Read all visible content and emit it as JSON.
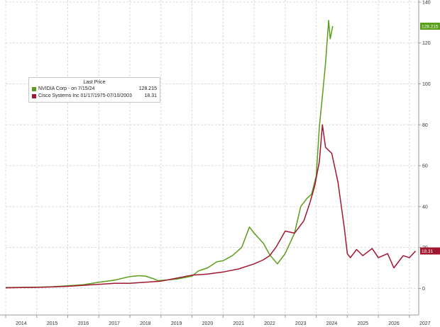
{
  "chart_data": {
    "type": "line",
    "grid": true,
    "x_ticks": [
      "2014",
      "2015",
      "2016",
      "2017",
      "2018",
      "2019",
      "2020",
      "2021",
      "2022",
      "2023",
      "2024",
      "2025",
      "2026",
      "2027"
    ],
    "y_ticks": [
      "0",
      "20",
      "40",
      "60",
      "80",
      "100",
      "120",
      "140"
    ],
    "xlim": [
      2014,
      2027.3
    ],
    "ylim": [
      -13,
      141
    ],
    "legend": {
      "title": "Last Price",
      "placement": "top-left",
      "entries": [
        {
          "name": "NVIDIA Corp -  on 7/15/24",
          "value": "128.215",
          "color": "#5a9e1a"
        },
        {
          "name": "Cisco Systems Inc 01/17/1975-07/10/2003",
          "value": "18.31",
          "color": "#a3162f"
        }
      ]
    },
    "series": [
      {
        "name": "NVIDIA Corp -  on 7/15/24",
        "color": "#5a9e1a",
        "last_value_label": "128.215",
        "x": [
          2014.0,
          2014.5,
          2015.0,
          2015.5,
          2016.0,
          2016.5,
          2017.0,
          2017.5,
          2018.0,
          2018.3,
          2018.5,
          2018.75,
          2018.9,
          2019.0,
          2019.5,
          2020.0,
          2020.2,
          2020.5,
          2020.8,
          2021.0,
          2021.3,
          2021.6,
          2021.85,
          2022.0,
          2022.3,
          2022.5,
          2022.75,
          2022.85,
          2023.0,
          2023.3,
          2023.5,
          2023.7,
          2023.85,
          2024.0,
          2024.1,
          2024.2,
          2024.3,
          2024.4,
          2024.45,
          2024.53
        ],
        "y": [
          0.4,
          0.5,
          0.6,
          0.8,
          1.3,
          1.8,
          3.0,
          4.0,
          5.8,
          6.2,
          6.0,
          4.8,
          3.8,
          3.9,
          4.5,
          6.0,
          8.5,
          10.0,
          13.0,
          13.5,
          16.0,
          20.0,
          30.0,
          27.0,
          22.0,
          16.5,
          12.0,
          14.0,
          17.0,
          27.0,
          40.0,
          44.0,
          46.0,
          55.0,
          79.0,
          94.0,
          110.0,
          131.0,
          122.0,
          128.2
        ]
      },
      {
        "name": "Cisco Systems Inc 01/17/1975-07/10/2003",
        "color": "#a3162f",
        "last_value_label": "18.31",
        "x": [
          2014.0,
          2014.5,
          2015.0,
          2015.5,
          2016.0,
          2016.5,
          2017.0,
          2017.5,
          2018.0,
          2018.5,
          2019.0,
          2019.5,
          2020.0,
          2020.5,
          2021.0,
          2021.5,
          2022.0,
          2022.3,
          2022.5,
          2022.7,
          2022.85,
          2023.0,
          2023.3,
          2023.6,
          2023.8,
          2023.95,
          2024.1,
          2024.2,
          2024.3,
          2024.5,
          2024.7,
          2024.9,
          2025.0,
          2025.1,
          2025.3,
          2025.5,
          2025.8,
          2026.0,
          2026.3,
          2026.5,
          2026.7,
          2026.8,
          2027.0,
          2027.2
        ],
        "y": [
          0.3,
          0.4,
          0.5,
          0.7,
          1.0,
          1.5,
          2.0,
          2.5,
          2.5,
          3.0,
          3.5,
          5.0,
          6.5,
          7.0,
          8.0,
          9.5,
          12.0,
          14.0,
          16.0,
          20.0,
          24.0,
          28.0,
          27.0,
          33.0,
          42.0,
          50.0,
          62.0,
          80.0,
          69.0,
          66.0,
          52.0,
          30.0,
          17.0,
          15.0,
          19.0,
          16.0,
          19.5,
          15.0,
          17.0,
          10.0,
          14.0,
          16.0,
          15.0,
          18.3
        ]
      }
    ]
  }
}
